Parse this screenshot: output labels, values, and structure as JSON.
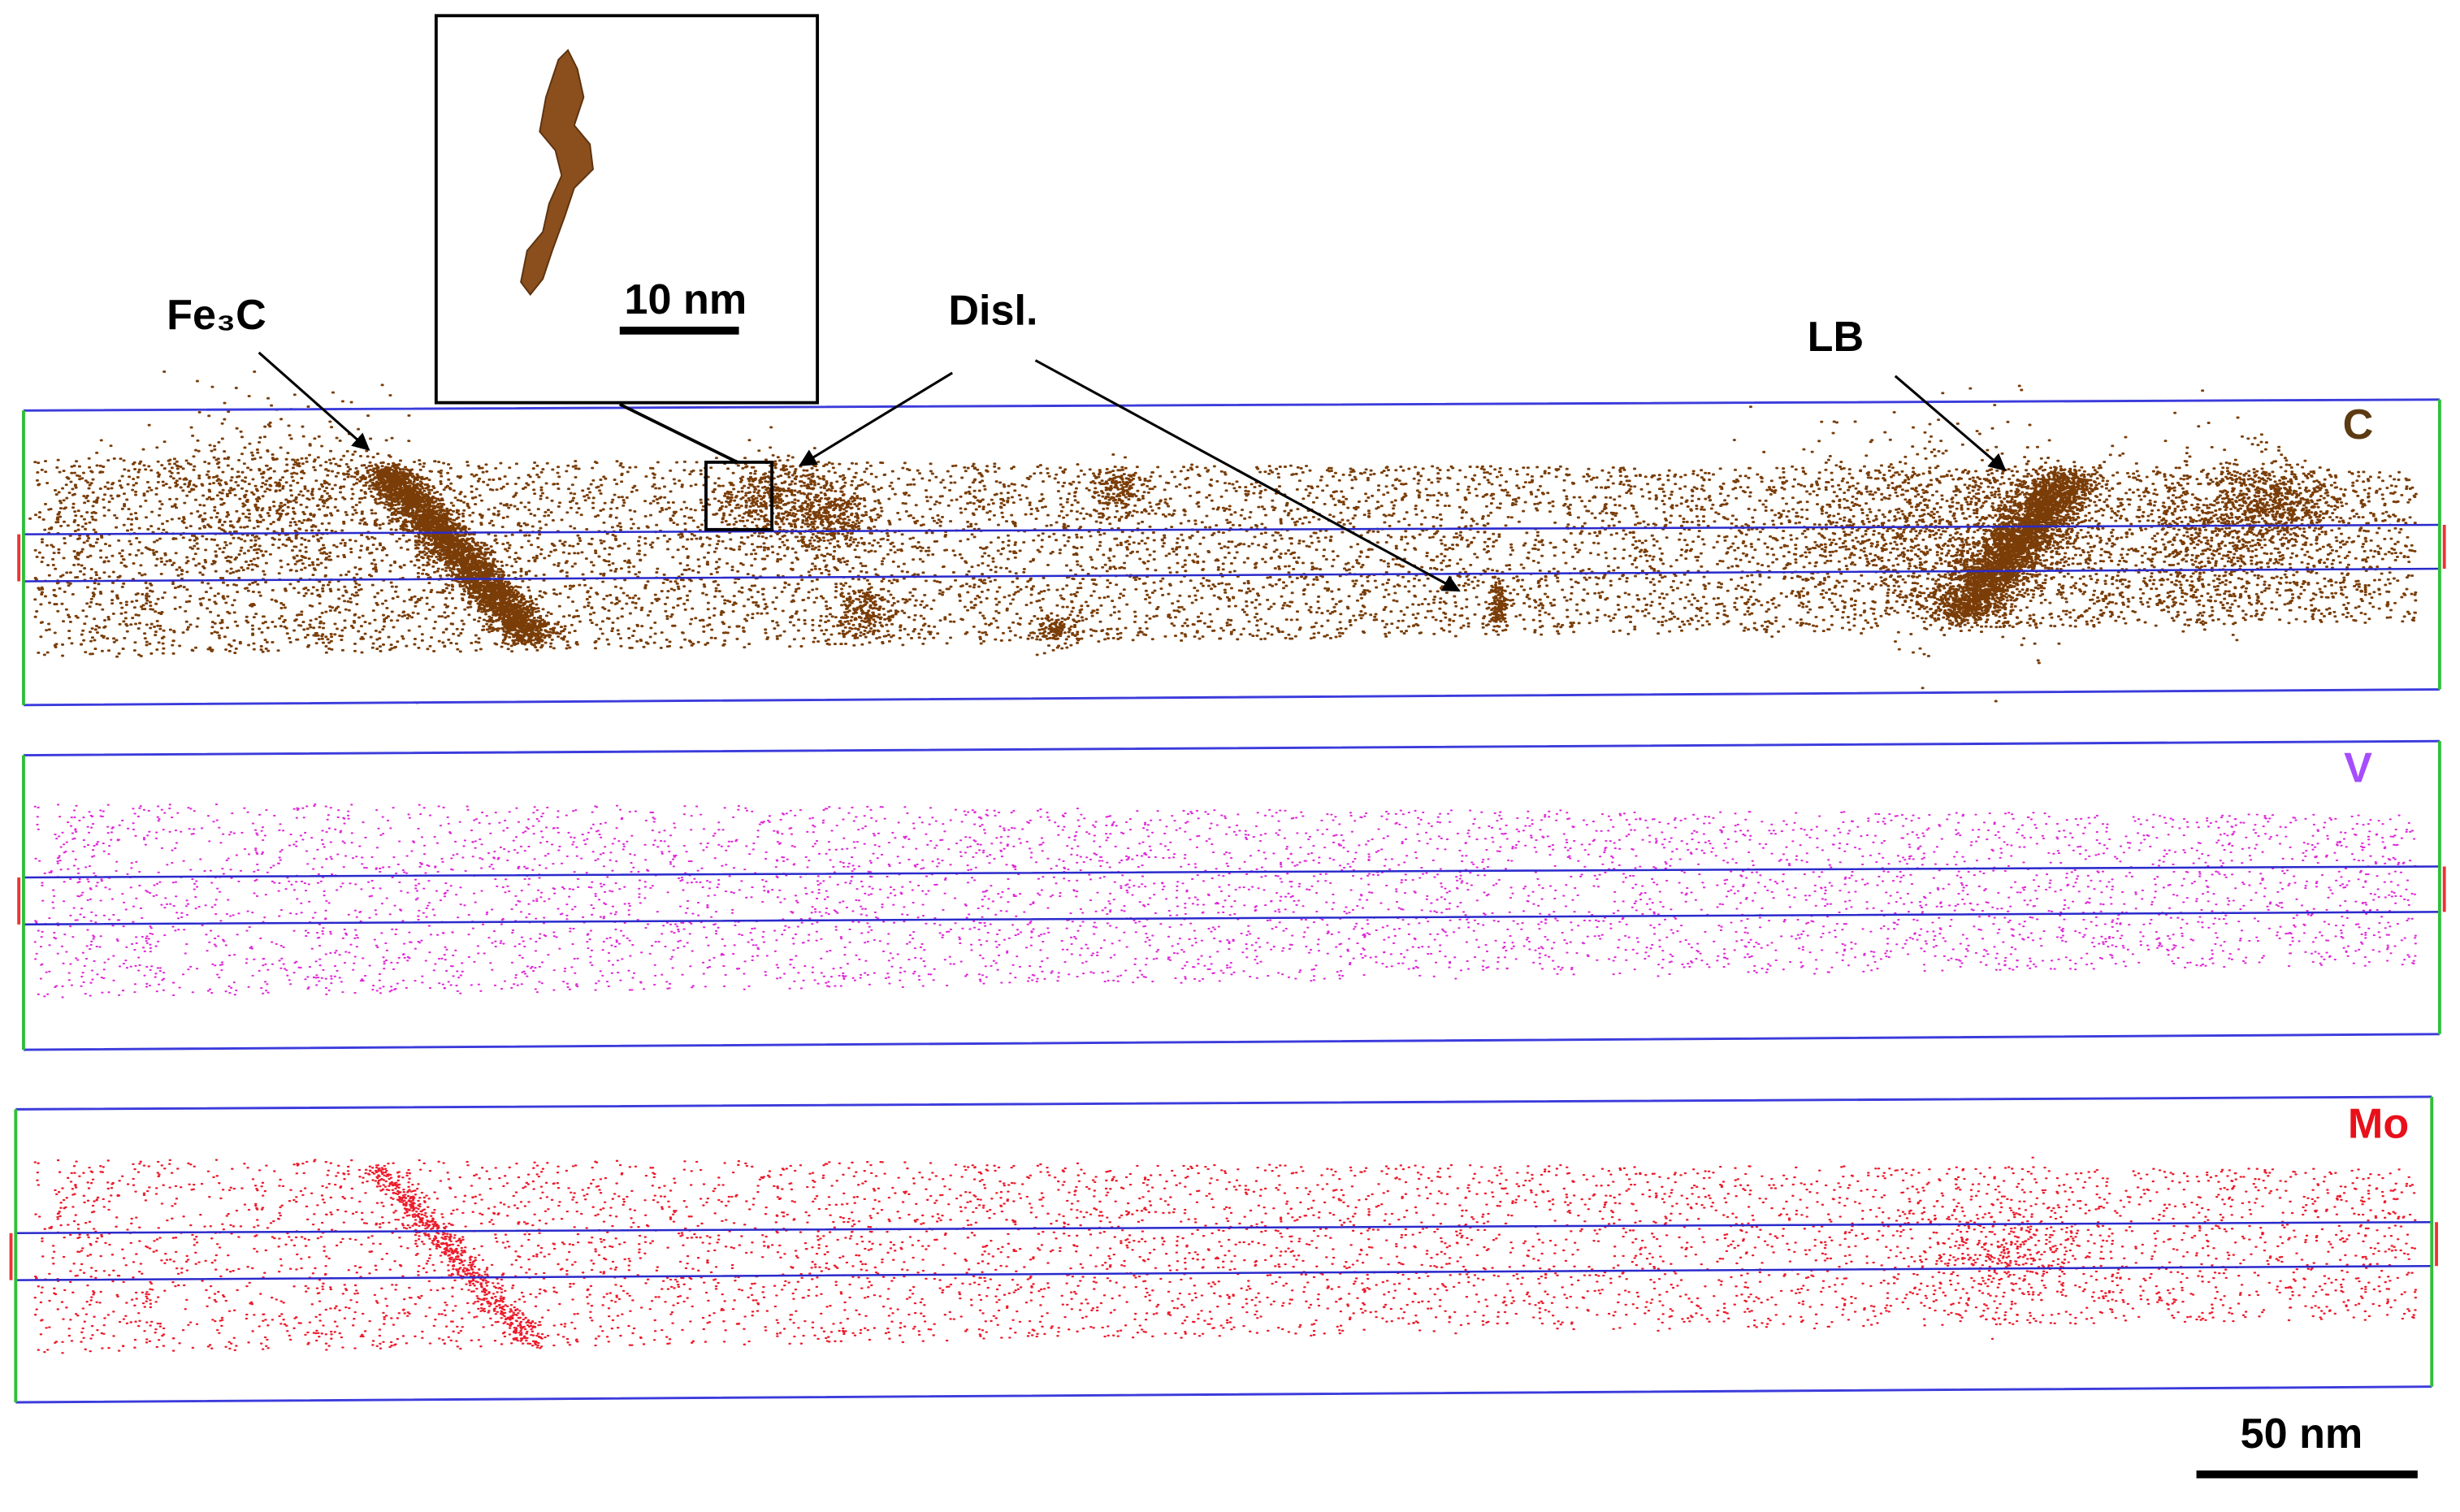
{
  "annotations": {
    "fe3c": "Fe₃C",
    "disl": "Disl.",
    "lb": "LB"
  },
  "inset": {
    "scale_label": "10 nm"
  },
  "panels": [
    {
      "element": "C"
    },
    {
      "element": "V"
    },
    {
      "element": "Mo"
    }
  ],
  "scale_bar": "50 nm"
}
